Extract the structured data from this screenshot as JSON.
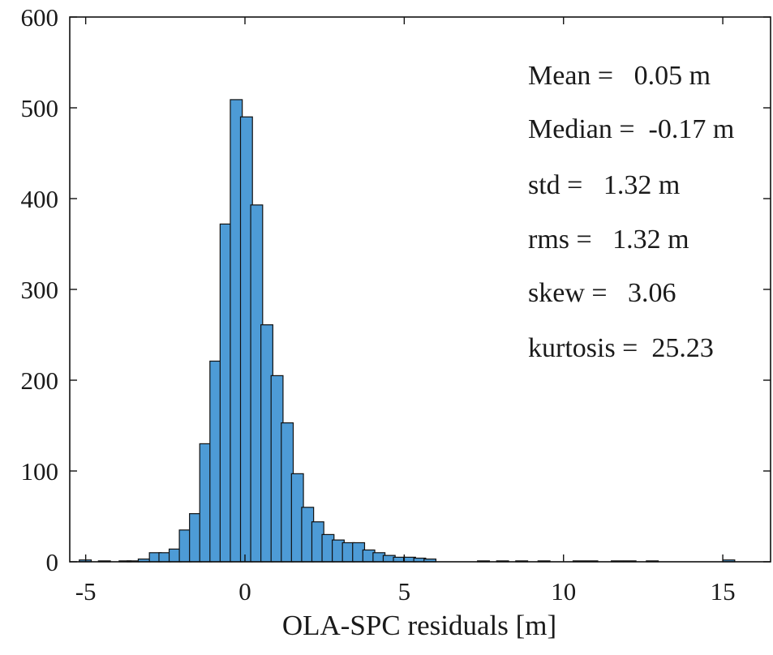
{
  "chart_data": {
    "type": "bar",
    "title": "",
    "xlabel": "OLA-SPC residuals [m]",
    "ylabel": "",
    "xlim": [
      -5.5,
      16.5
    ],
    "ylim": [
      0,
      600
    ],
    "grid": false,
    "bar_color": "#4d9bd6",
    "edge_color": "#111111",
    "bin_width": 0.375,
    "x_ticks": [
      -5,
      0,
      5,
      10,
      15
    ],
    "x_tick_labels": [
      "-5",
      "0",
      "5",
      "10",
      "15"
    ],
    "y_ticks": [
      0,
      100,
      200,
      300,
      400,
      500,
      600
    ],
    "y_tick_labels": [
      "0",
      "100",
      "200",
      "300",
      "400",
      "500",
      "600"
    ],
    "bins": [
      {
        "x0": -5.2,
        "count": 2
      },
      {
        "x0": -4.6,
        "count": 1
      },
      {
        "x0": -3.95,
        "count": 1
      },
      {
        "x0": -3.7,
        "count": 1
      },
      {
        "x0": -3.35,
        "count": 3
      },
      {
        "x0": -3.0,
        "count": 10
      },
      {
        "x0": -2.7,
        "count": 10
      },
      {
        "x0": -2.38,
        "count": 14
      },
      {
        "x0": -2.06,
        "count": 35
      },
      {
        "x0": -1.74,
        "count": 53
      },
      {
        "x0": -1.42,
        "count": 130
      },
      {
        "x0": -1.1,
        "count": 221
      },
      {
        "x0": -0.78,
        "count": 372
      },
      {
        "x0": -0.46,
        "count": 509
      },
      {
        "x0": -0.14,
        "count": 490
      },
      {
        "x0": 0.18,
        "count": 393
      },
      {
        "x0": 0.5,
        "count": 261
      },
      {
        "x0": 0.82,
        "count": 205
      },
      {
        "x0": 1.14,
        "count": 153
      },
      {
        "x0": 1.46,
        "count": 97
      },
      {
        "x0": 1.78,
        "count": 60
      },
      {
        "x0": 2.1,
        "count": 44
      },
      {
        "x0": 2.42,
        "count": 30
      },
      {
        "x0": 2.74,
        "count": 24
      },
      {
        "x0": 3.06,
        "count": 21
      },
      {
        "x0": 3.38,
        "count": 21
      },
      {
        "x0": 3.7,
        "count": 13
      },
      {
        "x0": 4.02,
        "count": 10
      },
      {
        "x0": 4.34,
        "count": 7
      },
      {
        "x0": 4.66,
        "count": 5
      },
      {
        "x0": 4.98,
        "count": 5
      },
      {
        "x0": 5.3,
        "count": 4
      },
      {
        "x0": 5.62,
        "count": 3
      },
      {
        "x0": 7.3,
        "count": 1
      },
      {
        "x0": 7.9,
        "count": 1
      },
      {
        "x0": 8.5,
        "count": 1
      },
      {
        "x0": 9.2,
        "count": 1
      },
      {
        "x0": 10.3,
        "count": 1
      },
      {
        "x0": 10.7,
        "count": 1
      },
      {
        "x0": 11.5,
        "count": 1
      },
      {
        "x0": 11.9,
        "count": 1
      },
      {
        "x0": 12.6,
        "count": 1
      },
      {
        "x0": 15.0,
        "count": 2
      }
    ],
    "annotations": [
      {
        "key": "mean",
        "text": "Mean =   0.05 m"
      },
      {
        "key": "median",
        "text": "Median =  -0.17 m"
      },
      {
        "key": "std",
        "text": "std =   1.32 m"
      },
      {
        "key": "rms",
        "text": "rms =   1.32 m"
      },
      {
        "key": "skew",
        "text": "skew =   3.06"
      },
      {
        "key": "kurtosis",
        "text": "kurtosis =  25.23"
      }
    ]
  }
}
